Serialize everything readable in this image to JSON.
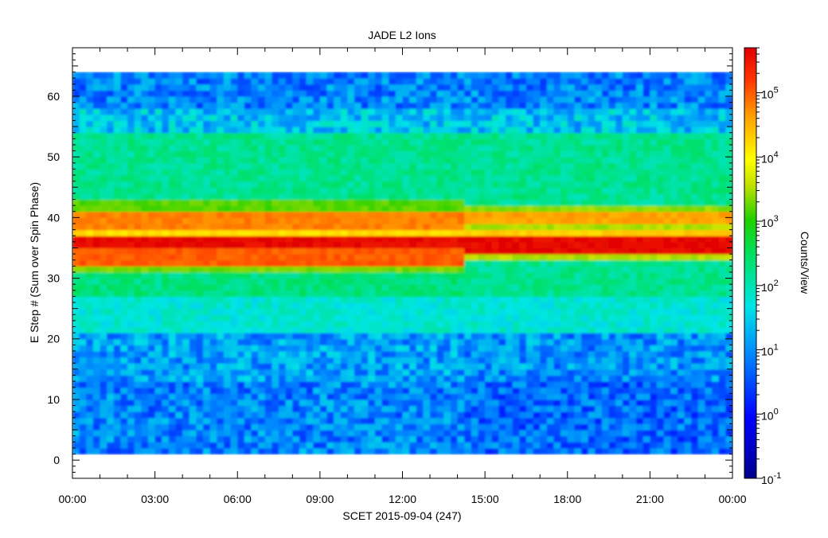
{
  "chart_data": {
    "type": "heatmap",
    "title": "JADE L2 Ions",
    "xlabel": "SCET 2015-09-04 (247)",
    "ylabel": "E Step # (Sum over Spin Phase)",
    "x_ticks": [
      "00:00",
      "03:00",
      "06:00",
      "09:00",
      "12:00",
      "15:00",
      "18:00",
      "21:00",
      "00:00"
    ],
    "x_range_hours": [
      0,
      24
    ],
    "y_ticks": [
      0,
      10,
      20,
      30,
      40,
      50,
      60
    ],
    "ylim": [
      -3,
      68
    ],
    "data_y_extent": [
      1,
      64
    ],
    "colorbar": {
      "label": "Counts/View",
      "scale": "log",
      "range_exponents": [
        -1,
        5.7
      ],
      "tick_base": "10",
      "tick_exponents": [
        -1,
        0,
        1,
        2,
        3,
        4,
        5
      ]
    },
    "approx_log10_counts_profile": {
      "before_14h": {
        "e_step_bins": [
          [
            1,
            13,
            0.9
          ],
          [
            13,
            21,
            1.1
          ],
          [
            21,
            27,
            1.8
          ],
          [
            27,
            31,
            2.3
          ],
          [
            31,
            32,
            3.3
          ],
          [
            32,
            35,
            5.0
          ],
          [
            35,
            37,
            5.6
          ],
          [
            37,
            38,
            4.2
          ],
          [
            38,
            41,
            4.8
          ],
          [
            41,
            43,
            3.2
          ],
          [
            43,
            54,
            2.2
          ],
          [
            54,
            58,
            1.4
          ],
          [
            58,
            64,
            0.9
          ]
        ]
      },
      "after_14h": {
        "e_step_bins": [
          [
            1,
            13,
            0.7
          ],
          [
            13,
            21,
            1.0
          ],
          [
            21,
            27,
            1.8
          ],
          [
            27,
            33,
            2.2
          ],
          [
            33,
            34,
            3.5
          ],
          [
            34,
            37,
            5.6
          ],
          [
            37,
            38,
            4.3
          ],
          [
            38,
            39,
            3.5
          ],
          [
            39,
            41,
            4.6
          ],
          [
            41,
            42,
            3.4
          ],
          [
            42,
            54,
            2.2
          ],
          [
            54,
            58,
            1.4
          ],
          [
            58,
            64,
            0.9
          ]
        ]
      }
    }
  }
}
